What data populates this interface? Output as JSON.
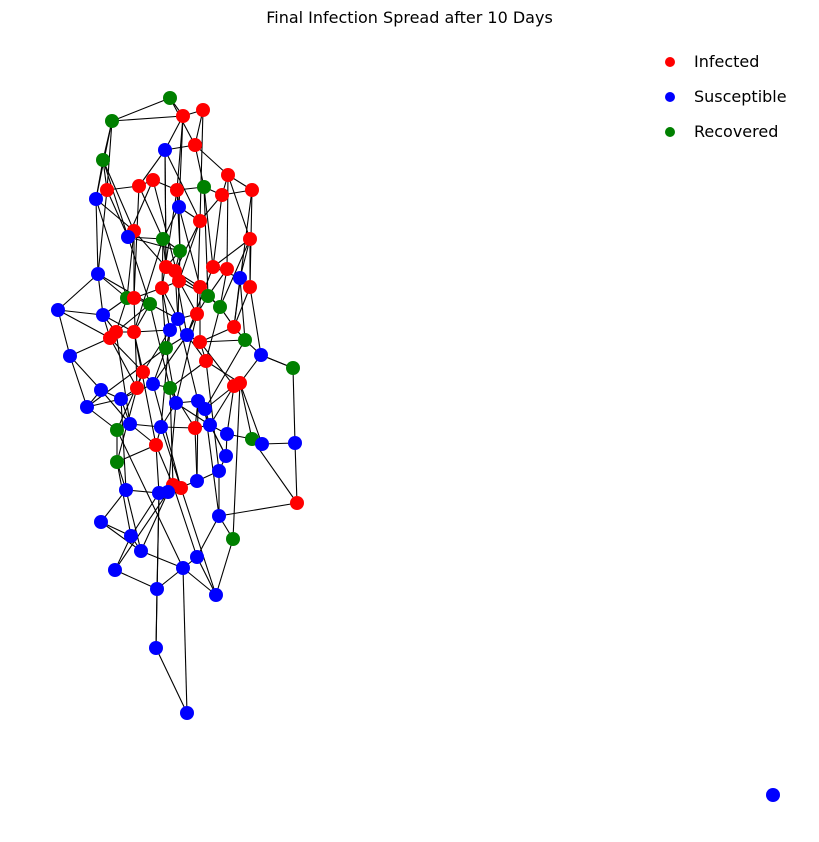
{
  "title": "Final Infection Spread after 10 Days",
  "legend": [
    {
      "label": "Infected",
      "color": "#ff0000"
    },
    {
      "label": "Susceptible",
      "color": "#0000ff"
    },
    {
      "label": "Recovered",
      "color": "#008000"
    }
  ],
  "edge_color": "#000000"
}
